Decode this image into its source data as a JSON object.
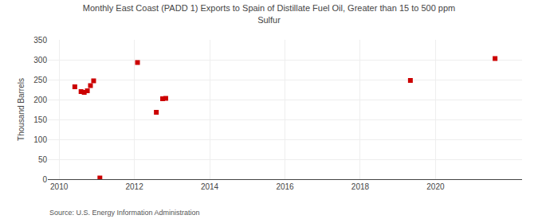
{
  "chart_data": {
    "type": "scatter",
    "title": "Monthly East Coast (PADD 1) Exports to Spain of Distillate Fuel Oil, Greater than 15 to 500 ppm\nSulfur",
    "y_label": "Thousand Barrels",
    "source": "Source: U.S. Energy Information Administration",
    "x": [
      2010.417,
      2010.583,
      2010.667,
      2010.75,
      2010.833,
      2010.917,
      2011.083,
      2012.083,
      2012.583,
      2012.75,
      2012.833,
      2019.333,
      2021.583
    ],
    "values": [
      232,
      220,
      218,
      222,
      235,
      247,
      3,
      293,
      168,
      202,
      203,
      248,
      303
    ],
    "color": "#cc0000",
    "marker": "square",
    "xlim": [
      2009.7,
      2022.3
    ],
    "xticks": [
      2010,
      2012,
      2014,
      2016,
      2018,
      2020
    ],
    "ylim": [
      0,
      350
    ],
    "yticks": [
      0,
      50,
      100,
      150,
      200,
      250,
      300,
      350
    ],
    "grid": true
  }
}
